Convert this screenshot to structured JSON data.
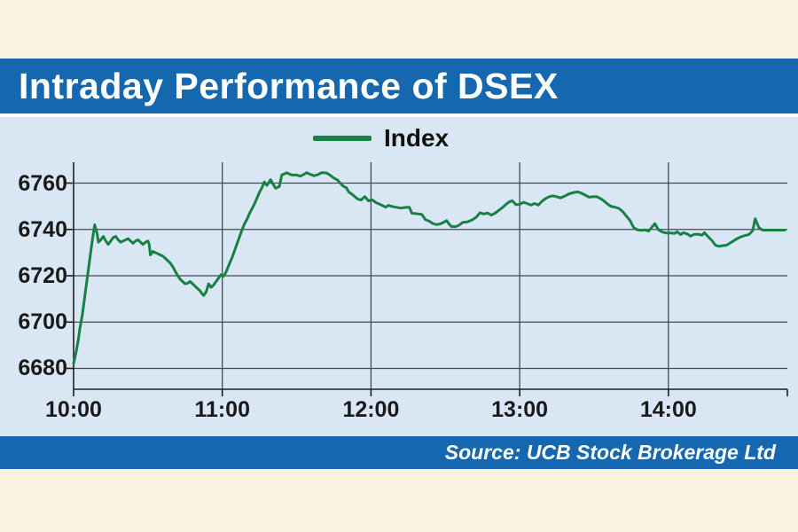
{
  "page": {
    "background_cream": "#fcf2e1",
    "accent_blue": "#1568b0",
    "plot_background": "#d9e6f4",
    "gridline_color": "#424a52",
    "axis_color": "#1f1f1f"
  },
  "header": {
    "title": "Intraday Performance of DSEX"
  },
  "legend": {
    "label": "Index",
    "line_color": "#178143"
  },
  "source": {
    "text": "Source: UCB Stock Brokerage Ltd"
  },
  "chart_data": {
    "type": "line",
    "title": "Intraday Performance of DSEX",
    "xlabel": "",
    "ylabel": "",
    "x_unit": "minutes since 10:00",
    "x_tick_labels": [
      "10:00",
      "11:00",
      "12:00",
      "13:00",
      "14:00"
    ],
    "x_tick_minutes": [
      0,
      60,
      120,
      180,
      240
    ],
    "y_ticks": [
      6680,
      6700,
      6720,
      6740,
      6760
    ],
    "ylim": [
      6671,
      6769
    ],
    "xlim_minutes": [
      0,
      288
    ],
    "grid": true,
    "legend_position": "top-center",
    "series": [
      {
        "name": "Index",
        "color": "#178143",
        "points": [
          [
            0,
            6682
          ],
          [
            1,
            6687
          ],
          [
            2,
            6693
          ],
          [
            2.5,
            6697
          ],
          [
            3.5,
            6703
          ],
          [
            4.5,
            6711
          ],
          [
            5.5,
            6719
          ],
          [
            6.5,
            6727
          ],
          [
            7.5,
            6735
          ],
          [
            8.5,
            6742
          ],
          [
            9.5,
            6738
          ],
          [
            10,
            6734.5
          ],
          [
            11,
            6735.5
          ],
          [
            12,
            6737
          ],
          [
            13,
            6735
          ],
          [
            14,
            6733.5
          ],
          [
            15,
            6735
          ],
          [
            16,
            6736.5
          ],
          [
            17,
            6737
          ],
          [
            18,
            6735.5
          ],
          [
            19,
            6734.5
          ],
          [
            20,
            6735
          ],
          [
            21,
            6735.5
          ],
          [
            22,
            6736
          ],
          [
            23,
            6735
          ],
          [
            24,
            6734
          ],
          [
            25,
            6735
          ],
          [
            26,
            6735.5
          ],
          [
            27,
            6734.5
          ],
          [
            28,
            6733.5
          ],
          [
            29,
            6734.5
          ],
          [
            30,
            6735
          ],
          [
            30.5,
            6733.5
          ],
          [
            31,
            6729
          ],
          [
            32,
            6730.5
          ],
          [
            33,
            6730
          ],
          [
            34,
            6729.5
          ],
          [
            35,
            6729
          ],
          [
            36,
            6728.5
          ],
          [
            37,
            6727.5
          ],
          [
            38,
            6726.5
          ],
          [
            39,
            6725.5
          ],
          [
            40,
            6724
          ],
          [
            41,
            6722
          ],
          [
            42,
            6720
          ],
          [
            43,
            6718.5
          ],
          [
            44,
            6717.5
          ],
          [
            45,
            6716.5
          ],
          [
            46,
            6716.8
          ],
          [
            47,
            6717.5
          ],
          [
            48,
            6716.5
          ],
          [
            49,
            6715.5
          ],
          [
            50,
            6714.5
          ],
          [
            51,
            6713.5
          ],
          [
            52,
            6712
          ],
          [
            52.5,
            6711.5
          ],
          [
            53.5,
            6713
          ],
          [
            54.5,
            6716.5
          ],
          [
            55.5,
            6715
          ],
          [
            56.5,
            6716
          ],
          [
            57.5,
            6717.5
          ],
          [
            58.5,
            6719
          ],
          [
            59.5,
            6720.5
          ],
          [
            60.5,
            6719.8
          ],
          [
            61.5,
            6721.5
          ],
          [
            63,
            6725.5
          ],
          [
            64,
            6728
          ],
          [
            65,
            6731
          ],
          [
            66,
            6734
          ],
          [
            67,
            6737
          ],
          [
            68,
            6740
          ],
          [
            69,
            6742.5
          ],
          [
            70,
            6744.5
          ],
          [
            71,
            6747
          ],
          [
            72,
            6749
          ],
          [
            73,
            6751
          ],
          [
            74,
            6753.5
          ],
          [
            75,
            6756
          ],
          [
            76,
            6758
          ],
          [
            77,
            6760.5
          ],
          [
            78,
            6759
          ],
          [
            79.5,
            6761.5
          ],
          [
            80.5,
            6759.5
          ],
          [
            81.5,
            6757.8
          ],
          [
            83,
            6758.5
          ],
          [
            84,
            6763.5
          ],
          [
            85,
            6764
          ],
          [
            86,
            6764.5
          ],
          [
            87,
            6764
          ],
          [
            88,
            6763.5
          ],
          [
            90,
            6763.5
          ],
          [
            91.5,
            6763
          ],
          [
            93,
            6763.8
          ],
          [
            94,
            6764.5
          ],
          [
            95.5,
            6763.8
          ],
          [
            97,
            6763.2
          ],
          [
            98.5,
            6763.6
          ],
          [
            100,
            6764.5
          ],
          [
            102,
            6764.4
          ],
          [
            103.5,
            6763.4
          ],
          [
            105,
            6762.2
          ],
          [
            106.5,
            6761.3
          ],
          [
            108,
            6759.5
          ],
          [
            109,
            6758.5
          ],
          [
            110,
            6758
          ],
          [
            111,
            6756.2
          ],
          [
            112,
            6755.4
          ],
          [
            113,
            6754.6
          ],
          [
            114.5,
            6753.2
          ],
          [
            116,
            6752.7
          ],
          [
            117.5,
            6754.2
          ],
          [
            119,
            6752.3
          ],
          [
            120.5,
            6752.8
          ],
          [
            122,
            6751.6
          ],
          [
            123.5,
            6750.9
          ],
          [
            125,
            6750.1
          ],
          [
            126,
            6749.6
          ],
          [
            127,
            6750.4
          ],
          [
            128.5,
            6749.9
          ],
          [
            130,
            6749.6
          ],
          [
            132,
            6749.2
          ],
          [
            134,
            6749.5
          ],
          [
            135.5,
            6749.6
          ],
          [
            136.5,
            6747
          ],
          [
            138.5,
            6746.8
          ],
          [
            140.5,
            6746.5
          ],
          [
            142,
            6744.2
          ],
          [
            143.5,
            6743.6
          ],
          [
            145,
            6742.5
          ],
          [
            146.5,
            6742.1
          ],
          [
            148,
            6742.4
          ],
          [
            149.5,
            6743.2
          ],
          [
            150.5,
            6743.8
          ],
          [
            151.5,
            6742.3
          ],
          [
            152.5,
            6741.2
          ],
          [
            154,
            6741.2
          ],
          [
            155.5,
            6741.8
          ],
          [
            157,
            6743
          ],
          [
            159,
            6743.3
          ],
          [
            161,
            6744.2
          ],
          [
            162.5,
            6745.3
          ],
          [
            164,
            6747.2
          ],
          [
            165.5,
            6746.7
          ],
          [
            167,
            6747.1
          ],
          [
            168.5,
            6746.2
          ],
          [
            170,
            6747
          ],
          [
            171.5,
            6748.2
          ],
          [
            173,
            6749.4
          ],
          [
            174.5,
            6750.9
          ],
          [
            176,
            6752
          ],
          [
            177,
            6752.4
          ],
          [
            178.5,
            6750.7
          ],
          [
            180,
            6750.8
          ],
          [
            181.5,
            6751.7
          ],
          [
            183,
            6751.2
          ],
          [
            184.5,
            6750.5
          ],
          [
            186,
            6751.2
          ],
          [
            187.5,
            6750.5
          ],
          [
            189,
            6752.2
          ],
          [
            190.5,
            6753.4
          ],
          [
            192,
            6754.2
          ],
          [
            193.5,
            6754.5
          ],
          [
            195,
            6754.1
          ],
          [
            196.5,
            6753.6
          ],
          [
            198,
            6754.3
          ],
          [
            200,
            6755.4
          ],
          [
            202,
            6756
          ],
          [
            203.5,
            6756.2
          ],
          [
            205,
            6755.6
          ],
          [
            206.5,
            6754.8
          ],
          [
            208,
            6753.9
          ],
          [
            209.5,
            6754.1
          ],
          [
            211,
            6754.2
          ],
          [
            212.5,
            6753.4
          ],
          [
            214,
            6752.3
          ],
          [
            215.5,
            6750.9
          ],
          [
            217,
            6749.9
          ],
          [
            218.5,
            6749.6
          ],
          [
            220,
            6749.1
          ],
          [
            221.5,
            6747.8
          ],
          [
            223,
            6745.8
          ],
          [
            224.5,
            6743.9
          ],
          [
            226,
            6740.8
          ],
          [
            227.5,
            6739.8
          ],
          [
            229,
            6739.6
          ],
          [
            230.5,
            6739.8
          ],
          [
            232,
            6739.3
          ],
          [
            233.5,
            6741.2
          ],
          [
            234.5,
            6742.5
          ],
          [
            236,
            6739.8
          ],
          [
            237.5,
            6738.9
          ],
          [
            239,
            6738.5
          ],
          [
            241,
            6738.5
          ],
          [
            242.5,
            6738.3
          ],
          [
            243.5,
            6739
          ],
          [
            245,
            6737.8
          ],
          [
            246,
            6738.6
          ],
          [
            247.5,
            6738.1
          ],
          [
            249,
            6737.1
          ],
          [
            250.5,
            6737.9
          ],
          [
            252,
            6737.9
          ],
          [
            253.5,
            6737.5
          ],
          [
            254.5,
            6738.6
          ],
          [
            256,
            6736.9
          ],
          [
            257.5,
            6735.3
          ],
          [
            259,
            6733.2
          ],
          [
            260.5,
            6732.7
          ],
          [
            262,
            6733
          ],
          [
            263.5,
            6733.2
          ],
          [
            265,
            6734.2
          ],
          [
            266.5,
            6735.2
          ],
          [
            268,
            6736.2
          ],
          [
            269.5,
            6736.9
          ],
          [
            271,
            6737.4
          ],
          [
            272.5,
            6737.8
          ],
          [
            274,
            6739.5
          ],
          [
            275,
            6744.6
          ],
          [
            276.5,
            6740.8
          ],
          [
            278,
            6739.7
          ],
          [
            281,
            6739.7
          ],
          [
            284,
            6739.7
          ],
          [
            287,
            6739.7
          ]
        ]
      }
    ]
  }
}
